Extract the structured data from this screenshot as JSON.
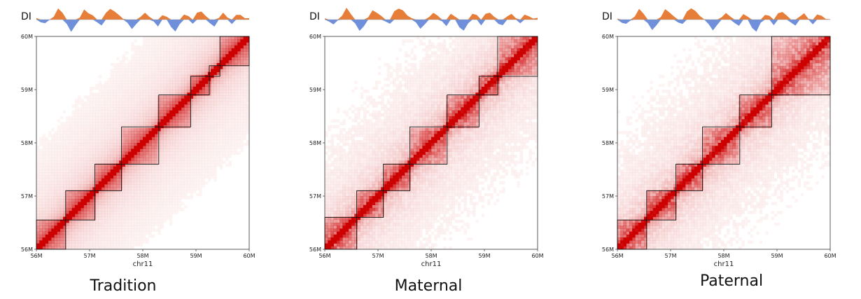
{
  "chart_data": {
    "type": "heatmap",
    "chromosome_label": "chr11",
    "x_ticks": [
      "56M",
      "57M",
      "58M",
      "59M",
      "60M"
    ],
    "y_ticks": [
      "56M",
      "57M",
      "58M",
      "59M",
      "60M"
    ],
    "range_mb": [
      56,
      60
    ],
    "di_label": "DI",
    "colors": {
      "heat": "#cc0000",
      "di_positive": "#e67e3a",
      "di_negative": "#6f8fdb",
      "border": "#111111"
    },
    "di_track": [
      0.05,
      -0.2,
      -0.35,
      -0.1,
      0.3,
      0.9,
      0.5,
      -0.3,
      -0.9,
      -0.5,
      0.2,
      0.8,
      0.5,
      0.3,
      -0.2,
      -0.4,
      0.6,
      0.9,
      0.7,
      0.3,
      0.1,
      -0.3,
      -0.8,
      -0.4,
      0.2,
      0.6,
      0.3,
      -0.2,
      -0.5,
      0.4,
      0.2,
      -0.6,
      -0.9,
      -0.3,
      0.4,
      0.3,
      -0.4,
      0.5,
      0.6,
      0.3,
      -0.3,
      -0.5,
      0.2,
      0.5,
      0.1,
      -0.3,
      0.4,
      0.3,
      0.05,
      0.1
    ],
    "panels": [
      {
        "name": "Tradition",
        "domains": [
          [
            56.0,
            56.55
          ],
          [
            56.55,
            57.1
          ],
          [
            57.1,
            57.6
          ],
          [
            57.6,
            58.3
          ],
          [
            58.3,
            58.9
          ],
          [
            58.9,
            59.25
          ],
          [
            59.25,
            59.45
          ],
          [
            59.45,
            60.0
          ]
        ],
        "noise": 0.08
      },
      {
        "name": "Maternal",
        "domains": [
          [
            56.0,
            56.6
          ],
          [
            56.6,
            57.1
          ],
          [
            57.1,
            57.6
          ],
          [
            57.6,
            58.3
          ],
          [
            58.3,
            58.9
          ],
          [
            58.9,
            59.25
          ],
          [
            59.25,
            60.0
          ]
        ],
        "noise": 0.32
      },
      {
        "name": "Paternal",
        "domains": [
          [
            56.0,
            56.55
          ],
          [
            56.55,
            57.1
          ],
          [
            57.1,
            57.6
          ],
          [
            57.6,
            58.3
          ],
          [
            58.3,
            58.9
          ],
          [
            58.9,
            60.0
          ]
        ],
        "noise": 0.36
      }
    ]
  }
}
